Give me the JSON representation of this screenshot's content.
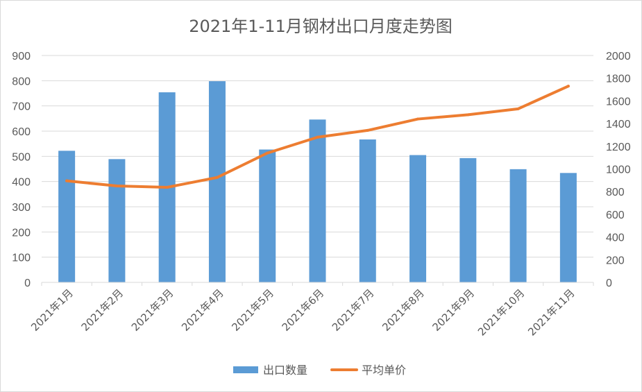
{
  "chart_data": {
    "type": "bar",
    "title": "2021年1-11月钢材出口月度走势图",
    "categories": [
      "2021年1月",
      "2021年2月",
      "2021年3月",
      "2021年4月",
      "2021年5月",
      "2021年6月",
      "2021年7月",
      "2021年8月",
      "2021年9月",
      "2021年10月",
      "2021年11月"
    ],
    "series": [
      {
        "name": "出口数量",
        "type": "bar",
        "axis": "left",
        "color": "#5b9bd5",
        "values": [
          522,
          489,
          754,
          798,
          527,
          646,
          567,
          505,
          493,
          449,
          434
        ]
      },
      {
        "name": "平均单价",
        "type": "line",
        "axis": "right",
        "color": "#ed7d31",
        "values": [
          895,
          850,
          838,
          925,
          1140,
          1280,
          1340,
          1440,
          1478,
          1530,
          1730
        ]
      }
    ],
    "y_left": {
      "min": 0,
      "max": 900,
      "ticks": [
        "0",
        "100",
        "200",
        "300",
        "400",
        "500",
        "600",
        "700",
        "800",
        "900"
      ]
    },
    "y_right": {
      "min": 0,
      "max": 2000,
      "ticks": [
        "0",
        "200",
        "400",
        "600",
        "800",
        "1000",
        "1200",
        "1400",
        "1600",
        "1800",
        "2000"
      ]
    },
    "grid": true,
    "legend_position": "bottom"
  }
}
